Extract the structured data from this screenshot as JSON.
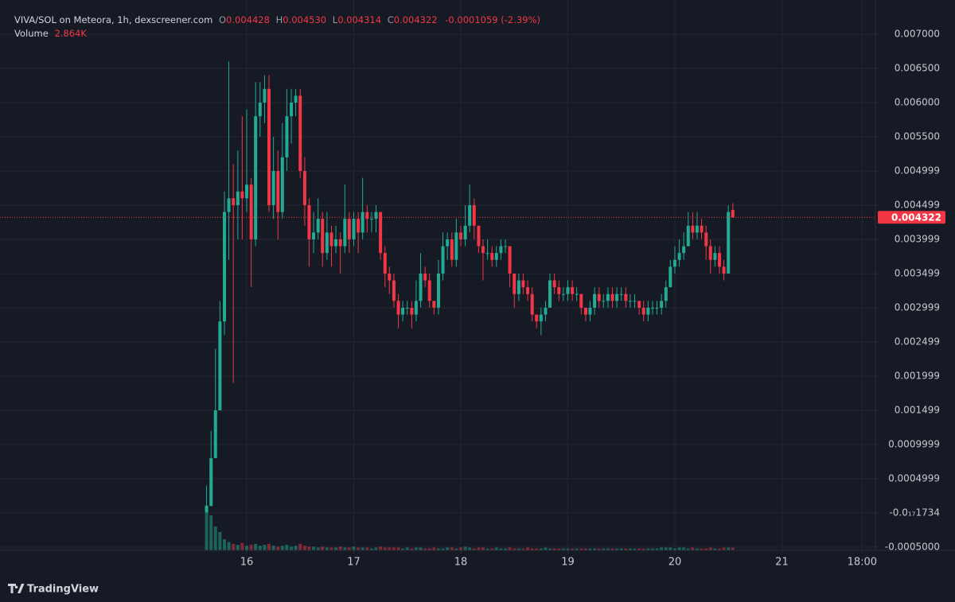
{
  "chart_data": {
    "type": "candlestick",
    "header": {
      "symbol": "VIVA/SOL on Meteora, 1h, dexscreener.com",
      "open_label": "O",
      "open": "0.004428",
      "high_label": "H",
      "high": "0.004530",
      "low_label": "L",
      "low": "0.004314",
      "close_label": "C",
      "close": "0.004322",
      "change": "-0.0001059 (-2.39%)",
      "volume_label": "Volume",
      "volume": "2.864K"
    },
    "price_label": "0.004322",
    "branding": "TradingView",
    "up_color": "#22ab94",
    "down_color": "#f23645",
    "grid": true,
    "xlim": [
      13.695,
      21.874
    ],
    "xticks": [
      16,
      17,
      18,
      19,
      20,
      21,
      {
        "value": 21.75,
        "label": "18:00"
      }
    ],
    "ylim": [
      -0.000547,
      0.0075
    ],
    "yticks": [
      {
        "value": 0.007,
        "label": "0.007000"
      },
      {
        "value": 0.0065,
        "label": "0.006500"
      },
      {
        "value": 0.006,
        "label": "0.006000"
      },
      {
        "value": 0.0055,
        "label": "0.005500"
      },
      0.004999,
      0.004499,
      0.003999,
      0.003499,
      0.002999,
      0.002499,
      0.001999,
      0.001499,
      0.0009999,
      0.0004999,
      {
        "value": -1.734e-18,
        "label": "-0.0₁₇1734"
      },
      {
        "value": -0.0005,
        "label": "-0.0005000"
      }
    ],
    "y2lim": [
      0,
      600000
    ],
    "x": [
      15.625,
      15.667,
      15.708,
      15.75,
      15.792,
      15.833,
      15.875,
      15.917,
      15.958,
      16,
      16.042,
      16.083,
      16.125,
      16.167,
      16.208,
      16.25,
      16.292,
      16.333,
      16.375,
      16.417,
      16.458,
      16.5,
      16.542,
      16.583,
      16.625,
      16.667,
      16.708,
      16.75,
      16.792,
      16.833,
      16.875,
      16.917,
      16.958,
      17,
      17.042,
      17.083,
      17.125,
      17.167,
      17.208,
      17.25,
      17.292,
      17.333,
      17.375,
      17.417,
      17.458,
      17.5,
      17.542,
      17.583,
      17.625,
      17.667,
      17.708,
      17.75,
      17.792,
      17.833,
      17.875,
      17.917,
      17.958,
      18,
      18.042,
      18.083,
      18.125,
      18.167,
      18.208,
      18.25,
      18.292,
      18.333,
      18.375,
      18.417,
      18.458,
      18.5,
      18.542,
      18.583,
      18.625,
      18.667,
      18.708,
      18.75,
      18.792,
      18.833,
      18.875,
      18.917,
      18.958,
      19,
      19.042,
      19.083,
      19.125,
      19.167,
      19.208,
      19.25,
      19.292,
      19.333,
      19.375,
      19.417,
      19.458,
      19.5,
      19.542,
      19.583,
      19.625,
      19.667,
      19.708,
      19.75,
      19.792,
      19.833,
      19.875,
      19.917,
      19.958,
      20,
      20.042,
      20.083,
      20.125,
      20.167,
      20.208,
      20.25,
      20.292,
      20.333,
      20.375,
      20.417,
      20.458,
      20.5,
      20.542
    ],
    "open": [
      1e-05,
      0.0001,
      0.0008,
      0.0015,
      0.0028,
      0.0044,
      0.0046,
      0.0045,
      0.0047,
      0.0046,
      0.0048,
      0.004,
      0.0058,
      0.006,
      0.0062,
      0.0045,
      0.005,
      0.0044,
      0.0052,
      0.0058,
      0.006,
      0.0061,
      0.005,
      0.0045,
      0.004,
      0.0041,
      0.0043,
      0.0038,
      0.0041,
      0.0039,
      0.004,
      0.0039,
      0.0043,
      0.004,
      0.0043,
      0.0041,
      0.0044,
      0.0043,
      0.0043,
      0.0044,
      0.0038,
      0.0035,
      0.0034,
      0.0031,
      0.0029,
      0.003,
      0.003,
      0.0029,
      0.0031,
      0.0035,
      0.0034,
      0.0031,
      0.003,
      0.0035,
      0.0039,
      0.004,
      0.0037,
      0.0041,
      0.004,
      0.0042,
      0.0045,
      0.0042,
      0.0039,
      0.0038,
      0.0038,
      0.0037,
      0.0038,
      0.0039,
      0.0039,
      0.0035,
      0.0032,
      0.0034,
      0.0033,
      0.0032,
      0.0029,
      0.0028,
      0.0029,
      0.003,
      0.0034,
      0.0033,
      0.0032,
      0.0032,
      0.0033,
      0.0032,
      0.0032,
      0.003,
      0.0029,
      0.003,
      0.0032,
      0.0031,
      0.0031,
      0.0032,
      0.0031,
      0.0032,
      0.0032,
      0.0031,
      0.0031,
      0.0031,
      0.003,
      0.0029,
      0.003,
      0.003,
      0.003,
      0.0031,
      0.0033,
      0.0036,
      0.0037,
      0.0038,
      0.0039,
      0.0042,
      0.0041,
      0.0042,
      0.0041,
      0.0039,
      0.0037,
      0.0038,
      0.0036,
      0.0035,
      0.004428
    ],
    "high": [
      0.0004,
      0.0012,
      0.0024,
      0.0031,
      0.0047,
      0.0066,
      0.0051,
      0.0053,
      0.0058,
      0.0059,
      0.0049,
      0.0063,
      0.0063,
      0.0064,
      0.0064,
      0.0055,
      0.0053,
      0.0057,
      0.0062,
      0.0062,
      0.0062,
      0.0062,
      0.0052,
      0.0046,
      0.0044,
      0.0046,
      0.0044,
      0.0044,
      0.0042,
      0.0042,
      0.0041,
      0.0048,
      0.0044,
      0.0044,
      0.0044,
      0.0049,
      0.0045,
      0.0044,
      0.0045,
      0.0044,
      0.0039,
      0.0036,
      0.0035,
      0.0032,
      0.0031,
      0.0031,
      0.0031,
      0.0034,
      0.0038,
      0.0036,
      0.0035,
      0.0031,
      0.0037,
      0.0041,
      0.0041,
      0.0041,
      0.0043,
      0.0042,
      0.0045,
      0.0048,
      0.0046,
      0.0042,
      0.004,
      0.004,
      0.0039,
      0.0039,
      0.004,
      0.004,
      0.0039,
      0.0035,
      0.0035,
      0.0035,
      0.0034,
      0.0033,
      0.0029,
      0.003,
      0.0031,
      0.0035,
      0.0035,
      0.0034,
      0.0033,
      0.0034,
      0.0034,
      0.0033,
      0.0032,
      0.003,
      0.0031,
      0.0033,
      0.0033,
      0.0032,
      0.0033,
      0.0033,
      0.0033,
      0.0033,
      0.0033,
      0.0032,
      0.0032,
      0.0031,
      0.0031,
      0.0031,
      0.0031,
      0.0031,
      0.0032,
      0.0034,
      0.0037,
      0.0039,
      0.004,
      0.0041,
      0.0044,
      0.0044,
      0.0044,
      0.0043,
      0.0042,
      0.004,
      0.0039,
      0.0039,
      0.0037,
      0.0045,
      0.00453
    ],
    "low": [
      0,
      0.0001,
      0.0008,
      0.0015,
      0.0026,
      0.0037,
      0.0019,
      0.004,
      0.004,
      0.0044,
      0.0033,
      0.0039,
      0.0055,
      0.0057,
      0.0044,
      0.0043,
      0.004,
      0.0043,
      0.005,
      0.0054,
      0.0058,
      0.0049,
      0.0042,
      0.0036,
      0.0038,
      0.004,
      0.0036,
      0.0037,
      0.0036,
      0.0038,
      0.0035,
      0.0038,
      0.0038,
      0.0039,
      0.0038,
      0.004,
      0.0041,
      0.0041,
      0.0041,
      0.0037,
      0.0033,
      0.0032,
      0.003,
      0.0027,
      0.0028,
      0.0029,
      0.0027,
      0.0028,
      0.003,
      0.0033,
      0.003,
      0.0029,
      0.0029,
      0.0034,
      0.0037,
      0.0036,
      0.0036,
      0.0039,
      0.0039,
      0.0041,
      0.004,
      0.0038,
      0.0034,
      0.0037,
      0.0036,
      0.0036,
      0.0037,
      0.0038,
      0.0033,
      0.003,
      0.0031,
      0.0032,
      0.0031,
      0.0028,
      0.0027,
      0.0026,
      0.0028,
      0.003,
      0.0032,
      0.0031,
      0.0031,
      0.0031,
      0.0031,
      0.0031,
      0.0029,
      0.0028,
      0.0028,
      0.0029,
      0.003,
      0.003,
      0.003,
      0.003,
      0.003,
      0.0031,
      0.003,
      0.003,
      0.003,
      0.0029,
      0.0028,
      0.0028,
      0.0029,
      0.0029,
      0.0029,
      0.003,
      0.0033,
      0.0035,
      0.0036,
      0.0037,
      0.0039,
      0.004,
      0.004,
      0.004,
      0.0037,
      0.0035,
      0.0036,
      0.0035,
      0.0034,
      0.0035,
      0.004314
    ],
    "close": [
      0.0001,
      0.0008,
      0.0015,
      0.0028,
      0.0044,
      0.0046,
      0.0045,
      0.0047,
      0.0046,
      0.0048,
      0.004,
      0.0058,
      0.006,
      0.0062,
      0.0045,
      0.005,
      0.0044,
      0.0052,
      0.0058,
      0.006,
      0.0061,
      0.005,
      0.0045,
      0.004,
      0.0041,
      0.0043,
      0.0038,
      0.0041,
      0.0039,
      0.004,
      0.0039,
      0.0043,
      0.004,
      0.0043,
      0.0041,
      0.0044,
      0.0043,
      0.0043,
      0.0044,
      0.0038,
      0.0035,
      0.0034,
      0.0031,
      0.0029,
      0.003,
      0.003,
      0.0029,
      0.0031,
      0.0035,
      0.0034,
      0.0031,
      0.003,
      0.0035,
      0.0039,
      0.004,
      0.0037,
      0.0041,
      0.004,
      0.0042,
      0.0045,
      0.0042,
      0.0039,
      0.0038,
      0.0038,
      0.0037,
      0.0038,
      0.0039,
      0.0039,
      0.0035,
      0.0032,
      0.0034,
      0.0033,
      0.0032,
      0.0029,
      0.0028,
      0.0029,
      0.003,
      0.0034,
      0.0033,
      0.0032,
      0.0032,
      0.0033,
      0.0032,
      0.0032,
      0.003,
      0.0029,
      0.003,
      0.0032,
      0.0031,
      0.0031,
      0.0032,
      0.0031,
      0.0032,
      0.0032,
      0.0031,
      0.0031,
      0.0031,
      0.003,
      0.0029,
      0.003,
      0.003,
      0.003,
      0.0031,
      0.0033,
      0.0036,
      0.0037,
      0.0038,
      0.0039,
      0.0042,
      0.0041,
      0.0042,
      0.0041,
      0.0039,
      0.0037,
      0.0038,
      0.0036,
      0.0035,
      0.0044,
      0.004322
    ],
    "volume": [
      49000,
      38000,
      26000,
      20000,
      12000,
      9000,
      7000,
      6000,
      8000,
      5000,
      6000,
      7000,
      5000,
      6000,
      7000,
      5000,
      4000,
      5000,
      6000,
      4000,
      5000,
      7000,
      5000,
      4000,
      4000,
      3000,
      4000,
      3000,
      3000,
      3000,
      4000,
      3000,
      3000,
      4000,
      3000,
      3000,
      3000,
      2000,
      3000,
      4000,
      3000,
      3000,
      3000,
      3000,
      2000,
      3000,
      2000,
      3000,
      3000,
      2000,
      2000,
      3000,
      2000,
      2000,
      3000,
      3000,
      2000,
      3000,
      4000,
      3000,
      2000,
      3000,
      3000,
      2000,
      2000,
      3000,
      2000,
      2000,
      3000,
      2000,
      2000,
      2000,
      3000,
      2000,
      2000,
      2000,
      3000,
      2000,
      2000,
      2000,
      2000,
      2000,
      2000,
      2000,
      2000,
      2000,
      2000,
      2000,
      2000,
      2000,
      2000,
      2000,
      2000,
      2000,
      2000,
      2000,
      2000,
      2000,
      2000,
      2000,
      2000,
      2000,
      3000,
      3000,
      3000,
      2000,
      3000,
      3000,
      2000,
      3000,
      2000,
      2000,
      2000,
      3000,
      2000,
      2000,
      3000,
      3000,
      2864
    ]
  }
}
